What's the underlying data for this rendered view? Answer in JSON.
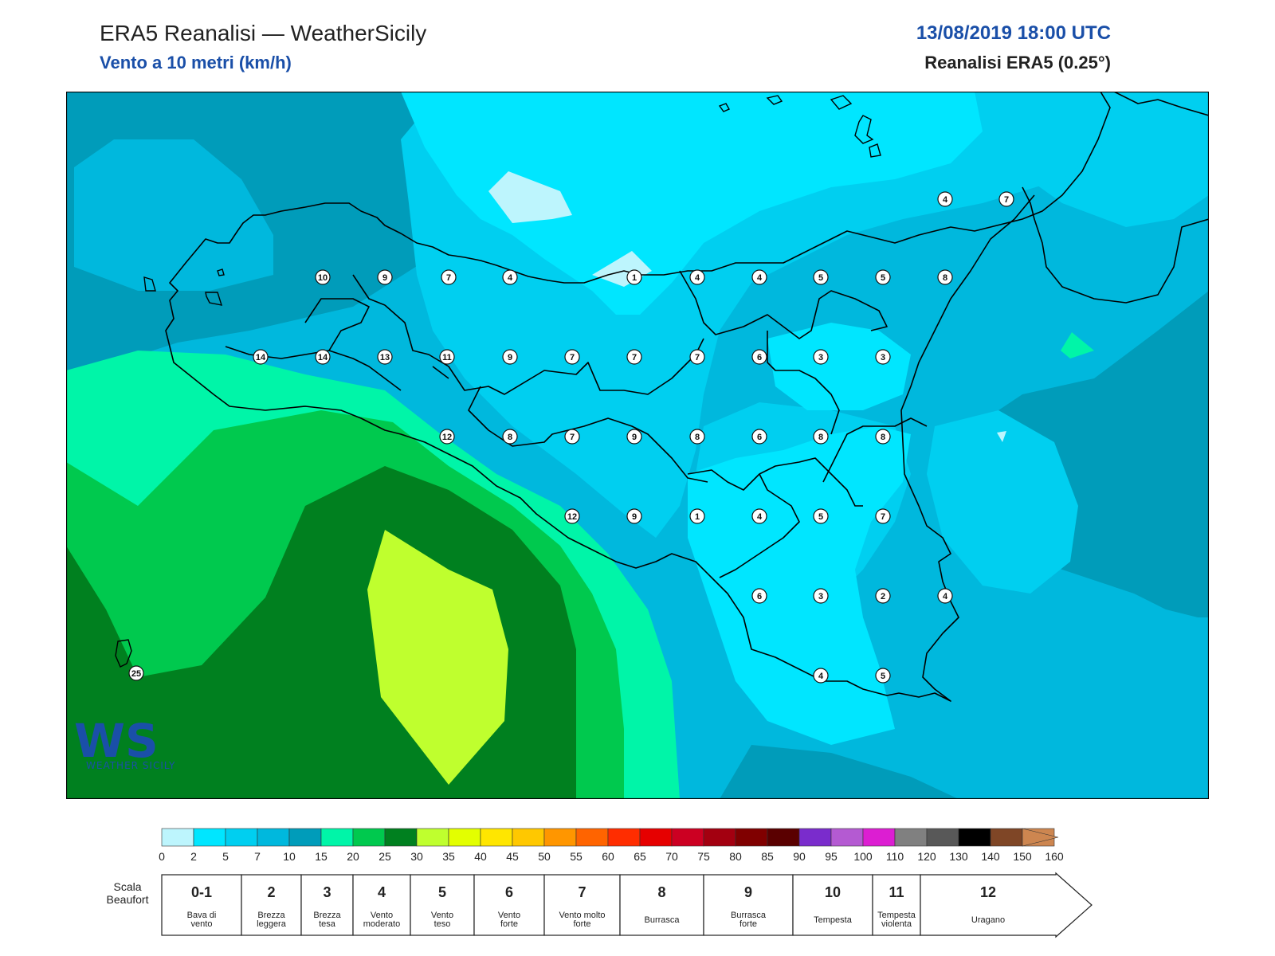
{
  "header": {
    "title": "ERA5 Reanalisi — WeatherSicily",
    "subtitle": "Vento a 10 metri (km/h)",
    "datetime": "13/08/2019 18:00 UTC",
    "model": "Reanalisi ERA5 (0.25°)"
  },
  "logo": {
    "letters": "WS",
    "text": "WEATHER SICILY"
  },
  "map_points": [
    {
      "value": "4"
    },
    {
      "value": "7"
    },
    {
      "value": "10"
    },
    {
      "value": "9"
    },
    {
      "value": "7"
    },
    {
      "value": "4"
    },
    {
      "value": "1"
    },
    {
      "value": "4"
    },
    {
      "value": "4"
    },
    {
      "value": "5"
    },
    {
      "value": "5"
    },
    {
      "value": "8"
    },
    {
      "value": "14"
    },
    {
      "value": "14"
    },
    {
      "value": "13"
    },
    {
      "value": "11"
    },
    {
      "value": "9"
    },
    {
      "value": "7"
    },
    {
      "value": "7"
    },
    {
      "value": "7"
    },
    {
      "value": "6"
    },
    {
      "value": "3"
    },
    {
      "value": "3"
    },
    {
      "value": "12"
    },
    {
      "value": "8"
    },
    {
      "value": "7"
    },
    {
      "value": "9"
    },
    {
      "value": "8"
    },
    {
      "value": "6"
    },
    {
      "value": "8"
    },
    {
      "value": "8"
    },
    {
      "value": "12"
    },
    {
      "value": "9"
    },
    {
      "value": "1"
    },
    {
      "value": "4"
    },
    {
      "value": "5"
    },
    {
      "value": "7"
    },
    {
      "value": "6"
    },
    {
      "value": "3"
    },
    {
      "value": "2"
    },
    {
      "value": "4"
    },
    {
      "value": "4"
    },
    {
      "value": "5"
    },
    {
      "value": "25"
    }
  ],
  "colorbar": {
    "ticks": [
      "0",
      "2",
      "5",
      "7",
      "10",
      "15",
      "20",
      "25",
      "30",
      "35",
      "40",
      "45",
      "50",
      "55",
      "60",
      "65",
      "70",
      "75",
      "80",
      "85",
      "90",
      "95",
      "100",
      "110",
      "120",
      "130",
      "140",
      "150",
      "160"
    ],
    "colors": [
      "#bdf5fd",
      "#00e6ff",
      "#00cff0",
      "#00b8dd",
      "#009cba",
      "#00f5a8",
      "#00c94e",
      "#00801f",
      "#bfff2e",
      "#e3ff00",
      "#ffe600",
      "#ffc800",
      "#ff9600",
      "#ff6400",
      "#ff2d00",
      "#e60000",
      "#cc0022",
      "#a30010",
      "#800000",
      "#5a0000",
      "#7a2ccc",
      "#b45ad2",
      "#dc1ed2",
      "#808080",
      "#585858",
      "#000000",
      "#7f4626",
      "#cd8650"
    ]
  },
  "beaufort": {
    "label": "Scala Beaufort",
    "classes": [
      {
        "num": "0-1",
        "desc": "Bava di vento"
      },
      {
        "num": "2",
        "desc": "Brezza leggera"
      },
      {
        "num": "3",
        "desc": "Brezza tesa"
      },
      {
        "num": "4",
        "desc": "Vento moderato"
      },
      {
        "num": "5",
        "desc": "Vento teso"
      },
      {
        "num": "6",
        "desc": "Vento forte"
      },
      {
        "num": "7",
        "desc": "Vento molto forte"
      },
      {
        "num": "8",
        "desc": "Burrasca"
      },
      {
        "num": "9",
        "desc": "Burrasca forte"
      },
      {
        "num": "10",
        "desc": "Tempesta"
      },
      {
        "num": "11",
        "desc": "Tempesta violenta"
      },
      {
        "num": "12",
        "desc": "Uragano"
      }
    ]
  }
}
